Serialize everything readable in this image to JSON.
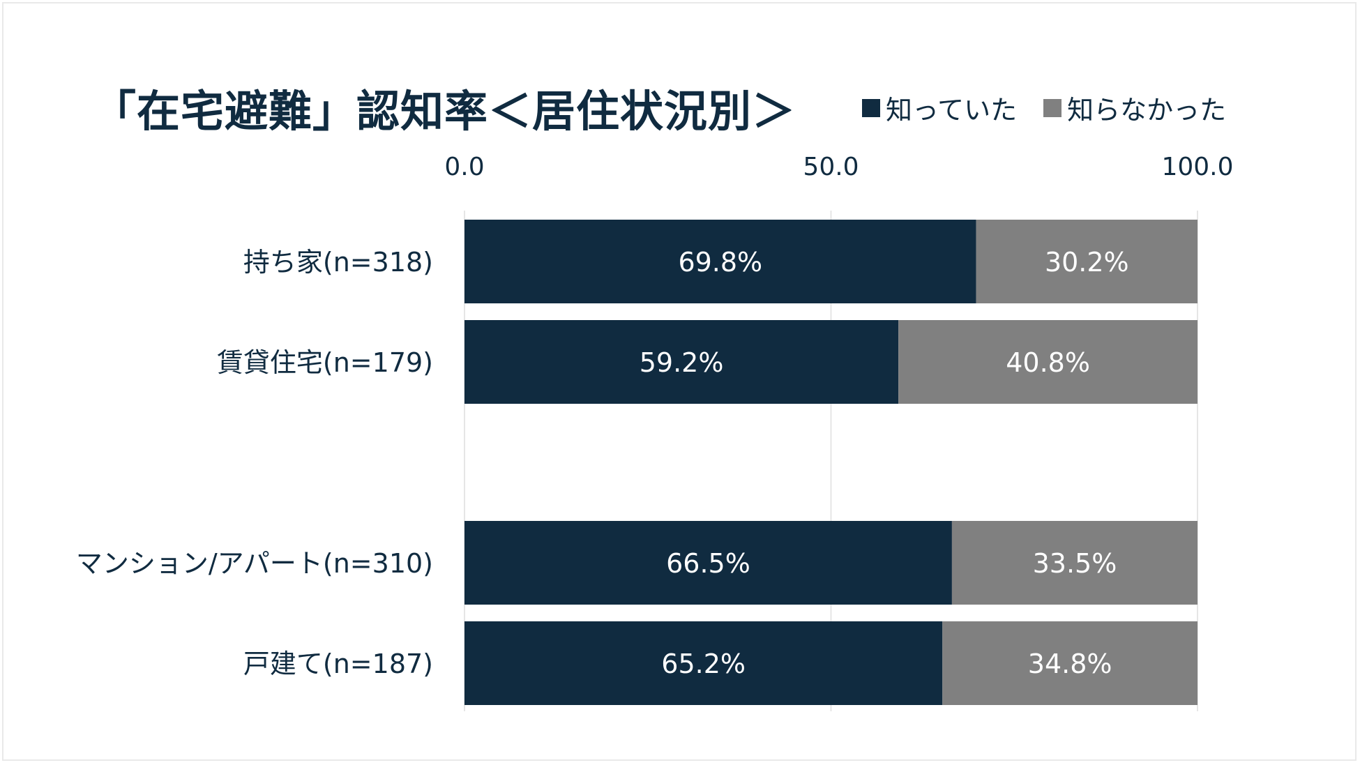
{
  "chart_data": {
    "type": "bar",
    "orientation": "horizontal",
    "stacked": true,
    "title": "「在宅避難」認知率＜居住状況別＞",
    "xlim": [
      0,
      100
    ],
    "x_ticks": [
      "0.0",
      "50.0",
      "100.0"
    ],
    "grid": true,
    "legend_position": "top-right",
    "categories": [
      "持ち家(n=318)",
      "賃貸住宅(n=179)",
      "",
      "マンション/アパート(n=310)",
      "戸建て(n=187)"
    ],
    "series": [
      {
        "name": "知っていた",
        "color": "#102b40",
        "values": [
          69.8,
          59.2,
          null,
          66.5,
          65.2
        ],
        "labels": [
          "69.8%",
          "59.2%",
          "",
          "66.5%",
          "65.2%"
        ]
      },
      {
        "name": "知らなかった",
        "color": "#808080",
        "values": [
          30.2,
          40.8,
          null,
          33.5,
          34.8
        ],
        "labels": [
          "30.2%",
          "40.8%",
          "",
          "33.5%",
          "34.8%"
        ]
      }
    ]
  }
}
